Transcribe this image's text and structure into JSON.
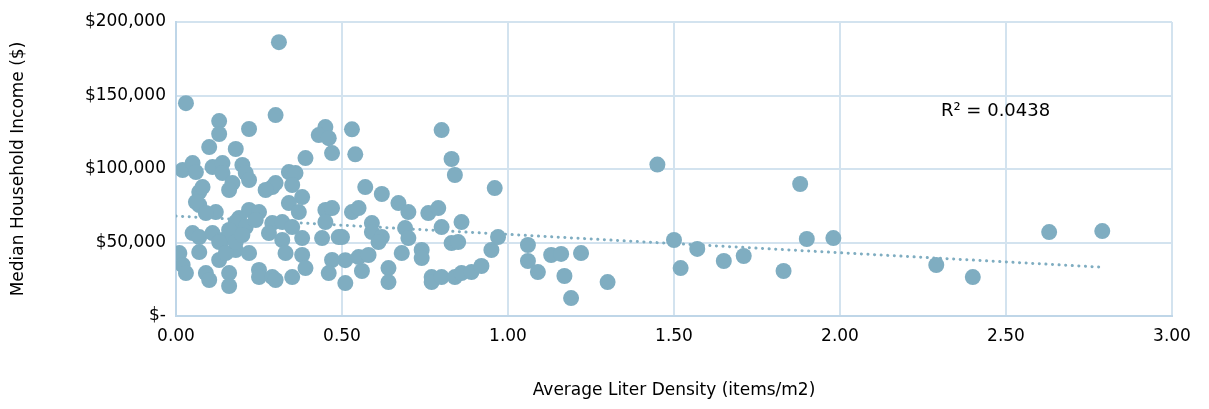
{
  "chart_data": {
    "type": "scatter",
    "xlabel": "Average Liter Density (items/m2)",
    "ylabel": "Median Household Income ($)",
    "xlim": [
      0,
      3
    ],
    "xticks": [
      {
        "value": 0,
        "label": "0.00"
      },
      {
        "value": 0.5,
        "label": "0.50"
      },
      {
        "value": 1,
        "label": "1.00"
      },
      {
        "value": 1.5,
        "label": "1.50"
      },
      {
        "value": 2,
        "label": "2.00"
      },
      {
        "value": 2.5,
        "label": "2.50"
      },
      {
        "value": 3,
        "label": "3.00"
      }
    ],
    "ylim": [
      0,
      200000
    ],
    "yticks": [
      {
        "value": 0,
        "label": "$-"
      },
      {
        "value": 50000,
        "label": "$50,000"
      },
      {
        "value": 100000,
        "label": "$100,000"
      },
      {
        "value": 150000,
        "label": "$150,000"
      },
      {
        "value": 200000,
        "label": "$200,000"
      }
    ],
    "grid": true,
    "legend": false,
    "marker": "circle",
    "annotations": [
      "R² = 0.0438"
    ],
    "series": [
      {
        "color": "#7fadc1",
        "x": [
          1.45,
          1.5,
          1.52,
          1.57,
          1.65,
          1.71,
          1.83,
          1.88,
          1.9,
          1.98,
          2.29,
          2.4,
          2.63,
          2.79,
          0.53,
          0.54,
          0.57,
          0.62,
          0.53,
          0.55,
          0.59,
          0.59,
          0.62,
          0.61,
          0.67,
          0.7,
          0.69,
          0.7,
          0.68,
          0.74,
          0.74,
          0.76,
          0.79,
          0.8,
          0.83,
          0.84,
          0.8,
          0.86,
          0.83,
          0.85,
          0.77,
          0.77,
          0.8,
          0.84,
          0.86,
          0.89,
          0.92,
          0.95,
          0.96,
          0.97,
          1.06,
          1.06,
          1.09,
          0.56,
          0.64,
          0.64,
          0.5,
          0.51,
          0.51,
          0.55,
          0.58,
          1.13,
          1.16,
          1.17,
          1.19,
          1.22,
          1.3,
          0.31,
          0.03,
          0.3,
          0.13,
          0.13,
          0.22,
          0.1,
          0.18,
          0.45,
          0.43,
          0.46,
          0.47,
          0.39,
          0.02,
          0.05,
          0.06,
          0.11,
          0.14,
          0.14,
          0.2,
          0.21,
          0.22,
          0.34,
          0.36,
          0.35,
          0.29,
          0.3,
          0.27,
          0.07,
          0.08,
          0.17,
          0.16,
          0.38,
          0.07,
          0.06,
          0.12,
          0.09,
          0.34,
          0.37,
          0.22,
          0.25,
          0.19,
          0.18,
          0.45,
          0.47,
          0.45,
          0.05,
          0.07,
          0.11,
          0.14,
          0.16,
          0.21,
          0.24,
          0.29,
          0.28,
          0.32,
          0.35,
          0.32,
          0.38,
          0.44,
          0.49,
          0.01,
          0.02,
          0.03,
          0.07,
          0.09,
          0.1,
          0.13,
          0.16,
          0.16,
          0.18,
          0.22,
          0.25,
          0.25,
          0.29,
          0.3,
          0.35,
          0.33,
          0.38,
          0.39,
          0.47,
          0.46,
          0.13,
          0.15,
          0.18,
          0.2
        ],
        "values": [
          103000,
          51700,
          32600,
          45600,
          37400,
          40800,
          30600,
          89800,
          52400,
          53000,
          34700,
          26500,
          57100,
          57800,
          127000,
          110000,
          87700,
          83000,
          70700,
          73400,
          63200,
          57100,
          53700,
          50300,
          76800,
          70700,
          59800,
          53000,
          42800,
          44900,
          39400,
          70000,
          73400,
          126500,
          106800,
          95900,
          60500,
          63900,
          49600,
          50300,
          26500,
          23100,
          26500,
          26500,
          29200,
          29900,
          34000,
          44900,
          87000,
          53700,
          48300,
          37400,
          29900,
          30600,
          32600,
          23100,
          53700,
          22400,
          38000,
          40100,
          41500,
          41500,
          42200,
          27200,
          12200,
          42800,
          23100,
          186300,
          144800,
          136700,
          132600,
          123800,
          127200,
          114900,
          113600,
          128500,
          123100,
          121000,
          110800,
          107400,
          99300,
          104000,
          97900,
          101300,
          104000,
          97200,
          102700,
          97200,
          92500,
          97900,
          97200,
          89100,
          87700,
          90400,
          85700,
          84300,
          87700,
          90400,
          85700,
          80900,
          75500,
          77500,
          70700,
          70000,
          76800,
          70700,
          72100,
          70700,
          66600,
          63900,
          72100,
          73400,
          63900,
          56400,
          53700,
          56400,
          51700,
          58500,
          60500,
          65300,
          63200,
          56400,
          63900,
          60500,
          51700,
          53000,
          53000,
          53700,
          42800,
          34700,
          29200,
          43500,
          29200,
          24500,
          38100,
          29200,
          20400,
          44900,
          42800,
          31300,
          26500,
          26500,
          24500,
          26500,
          42800,
          41500,
          32600,
          38100,
          29200,
          50300,
          42800,
          50300,
          55100
        ]
      },
      {
        "type": "line",
        "color": "#7fadc1",
        "marker": "none",
        "line_style": "dotted",
        "x": [
          0,
          2.78
        ],
        "values": [
          68000,
          33300
        ]
      }
    ]
  }
}
